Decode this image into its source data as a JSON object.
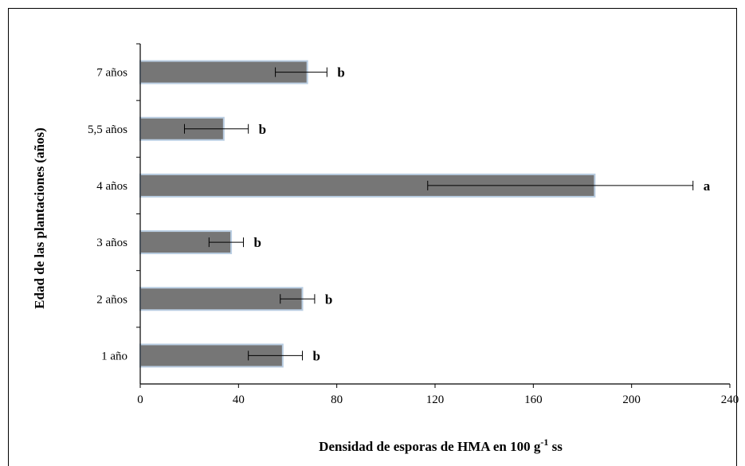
{
  "chart_data": {
    "type": "bar",
    "orientation": "horizontal",
    "categories": [
      "7 años",
      "5,5 años",
      "4 años",
      "3 años",
      "2 años",
      "1 año"
    ],
    "values": [
      68,
      34,
      185,
      37,
      66,
      58
    ],
    "error_low": [
      55,
      18,
      117,
      28,
      57,
      44
    ],
    "error_high": [
      76,
      44,
      225,
      42,
      71,
      66
    ],
    "significance": [
      "b",
      "b",
      "a",
      "b",
      "b",
      "b"
    ],
    "xlabel_main": "Densidad de esporas de HMA en 100 g",
    "xlabel_sup": "-1",
    "xlabel_end": " ss",
    "ylabel": "Edad de las plantaciones (años)",
    "xlim": [
      0,
      240
    ],
    "xticks": [
      0,
      40,
      80,
      120,
      160,
      200,
      240
    ],
    "grid": false,
    "legend": "none",
    "bar_color": "#767676",
    "bar_edge_color": "#b9cde2"
  }
}
